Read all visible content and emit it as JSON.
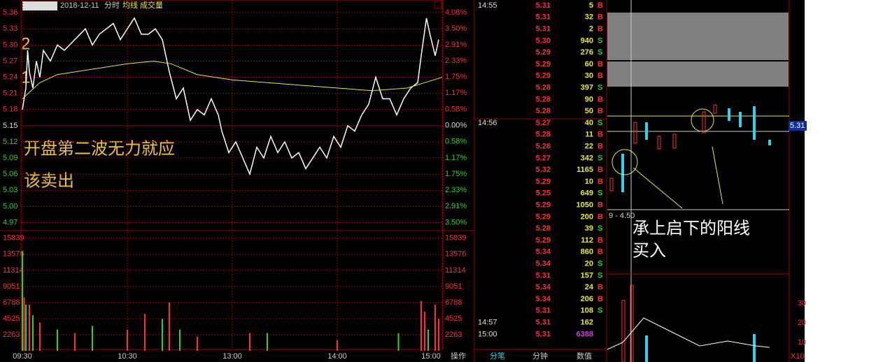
{
  "header": {
    "date": "2018-12-11",
    "mode": "分时"
  },
  "chart_data": {
    "type": "line",
    "xlim": [
      0,
      240
    ],
    "xticks": [
      {
        "value": 0,
        "label": "09:30"
      },
      {
        "value": 60,
        "label": "10:30"
      },
      {
        "value": 120,
        "label": "13:00"
      },
      {
        "value": 180,
        "label": "14:00"
      },
      {
        "value": 240,
        "label": "15:00"
      }
    ],
    "ylim": [
      4.955,
      5.368
    ],
    "yticks": [
      5.36,
      5.33,
      {
        "value": 5.3,
        "label": "5.30"
      },
      5.27,
      5.24,
      5.21,
      5.18,
      5.15,
      5.12,
      5.09,
      5.06,
      5.03,
      {
        "value": 5,
        "label": "5.00"
      },
      4.97
    ],
    "y2lim": [
      -3.79,
      4.23
    ],
    "y2ticks": [
      {
        "value": 4.08,
        "label": "4.08%"
      },
      {
        "value": 3.5,
        "label": "3.50%"
      },
      {
        "value": 2.91,
        "label": "2.91%"
      },
      {
        "value": 2.33,
        "label": "2.33%"
      },
      {
        "value": 1.75,
        "label": "1.75%"
      },
      {
        "value": 1.17,
        "label": "1.17%"
      },
      {
        "value": 0.58,
        "label": "0.58%"
      },
      {
        "value": 0,
        "label": "0.00%"
      },
      {
        "value": -0.58,
        "label": "0.58%"
      },
      {
        "value": -1.17,
        "label": "1.17%"
      },
      {
        "value": -1.75,
        "label": "1.75%"
      },
      {
        "value": -2.33,
        "label": "2.33%"
      },
      {
        "value": -2.91,
        "label": "2.91%"
      },
      {
        "value": -3.5,
        "label": "3.50%"
      }
    ],
    "annotations": [
      "2",
      "1",
      "开盘第二波无力就应",
      "该卖出"
    ],
    "series": [
      {
        "color": "#ffffff",
        "x": [
          0,
          2,
          3,
          4,
          6,
          8,
          10,
          12,
          16,
          20,
          24,
          30,
          36,
          40,
          44,
          48,
          52,
          56,
          60,
          64,
          68,
          72,
          76,
          80,
          84,
          88,
          92,
          96,
          100,
          104,
          108,
          112,
          114,
          118,
          122,
          126,
          130,
          134,
          138,
          142,
          146,
          150,
          154,
          158,
          162,
          166,
          170,
          174,
          178,
          182,
          186,
          190,
          194,
          198,
          202,
          206,
          210,
          214,
          218,
          222,
          226,
          228,
          231,
          233,
          236,
          238
        ],
        "values": [
          5.18,
          5.22,
          5.29,
          5.25,
          5.22,
          5.27,
          5.24,
          5.29,
          5.27,
          5.3,
          5.29,
          5.31,
          5.33,
          5.3,
          5.32,
          5.33,
          5.34,
          5.31,
          5.33,
          5.35,
          5.32,
          5.32,
          5.33,
          5.31,
          5.25,
          5.2,
          5.22,
          5.16,
          5.18,
          5.17,
          5.2,
          5.17,
          5.14,
          5.1,
          5.12,
          5.09,
          5.06,
          5.11,
          5.09,
          5.13,
          5.1,
          5.12,
          5.09,
          5.1,
          5.07,
          5.09,
          5.11,
          5.09,
          5.13,
          5.11,
          5.15,
          5.14,
          5.17,
          5.19,
          5.24,
          5.2,
          5.2,
          5.17,
          5.2,
          5.22,
          5.23,
          5.28,
          5.35,
          5.32,
          5.28,
          5.31
        ]
      },
      {
        "name": "均线",
        "color": "#e8e840",
        "x": [
          0,
          10,
          20,
          40,
          60,
          75,
          85,
          100,
          120,
          160,
          200,
          220,
          240
        ],
        "values": [
          5.2,
          5.23,
          5.245,
          5.255,
          5.265,
          5.27,
          5.265,
          5.245,
          5.235,
          5.225,
          5.215,
          5.22,
          5.24
        ]
      }
    ],
    "volume": {
      "name": "成交量",
      "ylim": [
        0,
        16900
      ],
      "yticks": [
        15839,
        13576,
        11314,
        9051,
        6788,
        4525,
        2263
      ],
      "series": [
        {
          "color": "#ff3030",
          "x": [
            1,
            4,
            10,
            30,
            60,
            70,
            84,
            100,
            130,
            180,
            228,
            230,
            236,
            238
          ],
          "values": [
            7500,
            6500,
            4000,
            2500,
            3000,
            5200,
            6800,
            2000,
            2500,
            1500,
            7000,
            5500,
            6500,
            4500
          ]
        },
        {
          "color": "#30d030",
          "x": [
            0,
            2,
            6,
            20,
            40,
            80,
            90,
            140,
            215,
            232
          ],
          "values": [
            14000,
            6500,
            5000,
            3000,
            3500,
            4500,
            3000,
            2500,
            2500,
            3000
          ]
        }
      ]
    }
  },
  "trades": {
    "rows": [
      {
        "time": "14:55",
        "price": "5.31",
        "volume": 5,
        "side": "B"
      },
      {
        "time": null,
        "price": "5.31",
        "volume": 32,
        "side": "B"
      },
      {
        "time": null,
        "price": "5.31",
        "volume": 2,
        "side": "B"
      },
      {
        "time": null,
        "price": "5.30",
        "volume": 940,
        "side": "S"
      },
      {
        "time": null,
        "price": "5.29",
        "volume": 276,
        "side": "S"
      },
      {
        "time": null,
        "price": "5.29",
        "volume": 60,
        "side": "B"
      },
      {
        "time": null,
        "price": "5.29",
        "volume": 30,
        "side": "B"
      },
      {
        "time": null,
        "price": "5.28",
        "volume": 397,
        "side": "S"
      },
      {
        "time": null,
        "price": "5.28",
        "volume": 90,
        "side": "B"
      },
      {
        "time": null,
        "price": "5.28",
        "volume": 50,
        "side": "B"
      },
      {
        "time": "14:56",
        "price": "5.27",
        "volume": 40,
        "side": "S"
      },
      {
        "time": null,
        "price": "5.28",
        "volume": 11,
        "side": "B"
      },
      {
        "time": null,
        "price": "5.28",
        "volume": 22,
        "side": "B"
      },
      {
        "time": null,
        "price": "5.27",
        "volume": 342,
        "side": "S"
      },
      {
        "time": null,
        "price": "5.32",
        "volume": 1165,
        "side": "B"
      },
      {
        "time": null,
        "price": "5.29",
        "volume": 10,
        "side": "B"
      },
      {
        "time": null,
        "price": "5.25",
        "volume": 649,
        "side": "S"
      },
      {
        "time": null,
        "price": "5.29",
        "volume": 1050,
        "side": "B"
      },
      {
        "time": null,
        "price": "5.29",
        "volume": 200,
        "side": "B"
      },
      {
        "time": null,
        "price": "5.28",
        "volume": 39,
        "side": "S"
      },
      {
        "time": null,
        "price": "5.29",
        "volume": 112,
        "side": "B"
      },
      {
        "time": null,
        "price": "5.34",
        "volume": 860,
        "side": "B"
      },
      {
        "time": null,
        "price": "5.34",
        "volume": 20,
        "side": "S"
      },
      {
        "time": null,
        "price": "5.31",
        "volume": 157,
        "side": "S"
      },
      {
        "time": null,
        "price": "5.34",
        "volume": 24,
        "side": "B"
      },
      {
        "time": null,
        "price": "5.34",
        "volume": 206,
        "side": "B"
      },
      {
        "time": null,
        "price": "5.31",
        "volume": 108,
        "side": "S"
      },
      {
        "time": "14:57",
        "price": "5.31",
        "volume": 162,
        "side": null
      },
      {
        "time": "15:00",
        "price": "5.31",
        "volume": 6388,
        "side": null
      }
    ],
    "tabs": [
      "操作",
      "分笔",
      "分钟",
      "数值"
    ]
  },
  "mini": {
    "annotation": [
      "承上启下的阳线",
      "买入"
    ],
    "price_tag": "5.31",
    "ma_label": "9 - 4.50",
    "vol_ticks": [
      "30",
      "20",
      "10"
    ],
    "multiplier": "X10"
  }
}
